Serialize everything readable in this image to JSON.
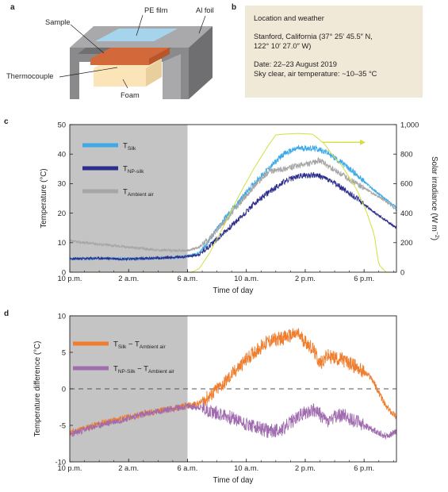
{
  "panels": {
    "a": "a",
    "b": "b",
    "c": "c",
    "d": "d"
  },
  "schematic": {
    "labels": {
      "pe_film": "PE film",
      "al_foil": "Al foil",
      "sample": "Sample",
      "thermocouple": "Thermocouple",
      "foam": "Foam"
    },
    "colors": {
      "foil": "#8a8a8c",
      "foil_top": "#a9a9ab",
      "foil_dark": "#6f6f71",
      "film": "#a6d4ec",
      "sample": "#d3693a",
      "foam": "#fbe4b8"
    }
  },
  "info": {
    "heading": "Location and weather",
    "location_line1": "Stanford, California (37° 25′ 45.5″ N,",
    "location_line2": "122° 10′ 27.0″ W)",
    "date": "Date: 22–23 August 2019",
    "weather": "Sky clear, air temperature: ~10–35 °C"
  },
  "chart_data": [
    {
      "type": "line",
      "xlabel": "Time of day",
      "ylabel": "Temperature (°C)",
      "y2label": "Solar irradiance (W m",
      "y2label_sup": "−2",
      "y2label_end": ")",
      "x_ticks": [
        {
          "t": 0,
          "label": "10 p.m."
        },
        {
          "t": 4,
          "label": "2 a.m."
        },
        {
          "t": 8,
          "label": "6 a.m."
        },
        {
          "t": 12,
          "label": "10 a.m."
        },
        {
          "t": 16,
          "label": "2 p.m."
        },
        {
          "t": 20,
          "label": "6 p.m."
        }
      ],
      "xlim_hours_after_10pm": [
        0,
        22.2
      ],
      "ylim": [
        0,
        50
      ],
      "y_ticks": [
        0,
        10,
        20,
        30,
        40,
        50
      ],
      "y2lim": [
        0,
        1000
      ],
      "y2_ticks": [
        {
          "v": 0,
          "label": "0"
        },
        {
          "v": 200,
          "label": "200"
        },
        {
          "v": 400,
          "label": "400"
        },
        {
          "v": 600,
          "label": "600"
        },
        {
          "v": 800,
          "label": "800"
        },
        {
          "v": 1000,
          "label": "1,000"
        }
      ],
      "night_shading_end": 8,
      "legend_position": "top-left",
      "series": [
        {
          "name": "T",
          "sub": "Silk",
          "color": "#3da9e6",
          "x": [
            0,
            1,
            2,
            3,
            4,
            5,
            6,
            7,
            8,
            8.8,
            9.5,
            10.5,
            11.5,
            12.5,
            13.5,
            14.5,
            15.5,
            16.5,
            17,
            17.5,
            18.5,
            19.5,
            20.5,
            21.5,
            22.2
          ],
          "y": [
            4.5,
            4.6,
            4.7,
            4.6,
            4.5,
            4.6,
            4.8,
            5.0,
            5.3,
            6.5,
            11,
            18,
            24,
            30,
            35,
            40,
            42,
            42,
            41.5,
            40.5,
            37,
            33,
            28.5,
            24.5,
            22
          ]
        },
        {
          "name": "T",
          "sub": "NP-silk",
          "color": "#2b2e8c",
          "x": [
            0,
            1,
            2,
            3,
            4,
            5,
            6,
            7,
            8,
            8.8,
            9.5,
            10.5,
            11.5,
            12.5,
            13.5,
            14.5,
            15.5,
            16.5,
            17,
            17.5,
            18.5,
            19.5,
            20.5,
            21.5,
            22.2
          ],
          "y": [
            4.5,
            4.6,
            4.7,
            4.6,
            4.5,
            4.6,
            4.8,
            5.0,
            5.3,
            6.0,
            9,
            13.5,
            18,
            23,
            27,
            30.5,
            32.5,
            33,
            32.5,
            31.5,
            28.5,
            25,
            21,
            17.5,
            15
          ]
        },
        {
          "name": "T",
          "sub": "Ambient air",
          "color": "#a7a6a6",
          "x": [
            0,
            1,
            2,
            3,
            4,
            5,
            6,
            7,
            8,
            8.8,
            9.5,
            10.5,
            11.5,
            12.5,
            13.5,
            14.5,
            15.5,
            16.5,
            17,
            17.5,
            18.5,
            19.5,
            20.5,
            21.5,
            22.2
          ],
          "y": [
            10.5,
            10.0,
            9.5,
            9.0,
            8.5,
            8.0,
            7.5,
            7.3,
            7.3,
            8.5,
            11.5,
            17,
            23,
            29,
            34,
            35,
            36,
            37,
            38,
            36,
            33,
            30,
            27,
            24,
            21
          ]
        },
        {
          "name": "Solar irradiance",
          "axis": "right",
          "color": "#d4df3d",
          "x": [
            0,
            8.3,
            8.8,
            9.5,
            10.5,
            11.5,
            12.5,
            13.5,
            14,
            14.5,
            15.5,
            16.5,
            17.3,
            17.8,
            18.5,
            19.5,
            20.2,
            20.7,
            21.0,
            21.5,
            22.2
          ],
          "y": [
            0,
            0,
            25,
            130,
            320,
            520,
            700,
            860,
            930,
            935,
            940,
            935,
            870,
            800,
            720,
            560,
            400,
            250,
            50,
            0,
            0
          ]
        }
      ],
      "arrow": {
        "x1": 17.2,
        "x2": 20.1,
        "y": 880
      }
    },
    {
      "type": "line",
      "xlabel": "Time of day",
      "ylabel": "Temperature difference (°C)",
      "x_ticks": [
        {
          "t": 0,
          "label": "10 p.m."
        },
        {
          "t": 4,
          "label": "2 a.m."
        },
        {
          "t": 8,
          "label": "6 a.m."
        },
        {
          "t": 12,
          "label": "10 a.m."
        },
        {
          "t": 16,
          "label": "2 p.m."
        },
        {
          "t": 20,
          "label": "6 p.m."
        }
      ],
      "xlim_hours_after_10pm": [
        0,
        22.2
      ],
      "ylim": [
        -10,
        10
      ],
      "y_ticks": [
        -10,
        -5,
        0,
        5,
        10
      ],
      "zero_line": 0,
      "night_shading_end": 8,
      "legend_position": "top-left",
      "series": [
        {
          "name": "T",
          "sub": "Silk",
          "minus": " − T",
          "sub2": "Ambient air",
          "color": "#ef7d2d",
          "x": [
            0,
            1,
            2,
            3,
            4,
            5,
            6,
            7,
            8,
            8.8,
            9.5,
            10.5,
            11.5,
            12.5,
            13.5,
            14.5,
            15.5,
            16.5,
            17,
            17.5,
            18.5,
            19.5,
            20.5,
            21.5,
            22.2
          ],
          "y": [
            -6,
            -5.4,
            -4.8,
            -4.3,
            -3.9,
            -3.4,
            -3.0,
            -2.7,
            -2.3,
            -2.0,
            -1.0,
            0.8,
            3.0,
            5.0,
            6.5,
            7.0,
            7.5,
            5.5,
            3.5,
            4.5,
            4.0,
            3.0,
            1.5,
            -2.5,
            -3.8
          ]
        },
        {
          "name": "T",
          "sub": "NP-Silk",
          "minus": " − T",
          "sub2": "Ambient air",
          "color": "#a16baf",
          "x": [
            0,
            1,
            2,
            3,
            4,
            5,
            6,
            7,
            8,
            8.8,
            9.5,
            10.5,
            11.5,
            12.5,
            13.5,
            14.5,
            15.5,
            16.5,
            17,
            17.5,
            18.5,
            19.5,
            20.5,
            21.5,
            22.2
          ],
          "y": [
            -6.3,
            -5.6,
            -5.0,
            -4.5,
            -4.0,
            -3.5,
            -3.1,
            -2.7,
            -2.4,
            -2.5,
            -3.0,
            -3.6,
            -4.4,
            -5.2,
            -5.8,
            -5.5,
            -3.8,
            -2.8,
            -3.5,
            -4.5,
            -3.5,
            -4.5,
            -5.5,
            -6.5,
            -5.8
          ]
        }
      ]
    }
  ]
}
